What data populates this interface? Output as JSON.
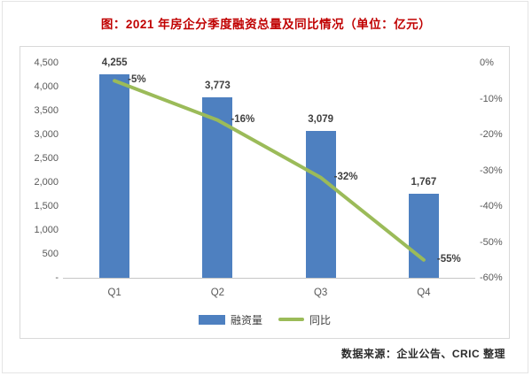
{
  "title": "图：2021 年房企分季度融资总量及同比情况（单位：亿元）",
  "source": "数据来源：企业公告、CRIC 整理",
  "legend": {
    "bar_label": "融资量",
    "line_label": "同比"
  },
  "colors": {
    "bar": "#4e80c0",
    "line": "#9bbb59",
    "title": "#c00000",
    "axis_text": "#595959",
    "label_text": "#404040",
    "frame_border": "#d9d9d9"
  },
  "chart_data": {
    "type": "bar",
    "title": "图：2021 年房企分季度融资总量及同比情况（单位：亿元）",
    "categories": [
      "Q1",
      "Q2",
      "Q3",
      "Q4"
    ],
    "series": [
      {
        "name": "融资量",
        "type": "bar",
        "axis": "left",
        "values": [
          4255,
          3773,
          3079,
          1767
        ],
        "labels": [
          "4,255",
          "3,773",
          "3,079",
          "1,767"
        ]
      },
      {
        "name": "同比",
        "type": "line",
        "axis": "right",
        "values": [
          -5,
          -16,
          -32,
          -55
        ],
        "labels": [
          "-5%",
          "-16%",
          "-32%",
          "-55%"
        ]
      }
    ],
    "left_axis": {
      "min": 0,
      "max": 4500,
      "step": 500,
      "ticks": [
        "4,500",
        "4,000",
        "3,500",
        "3,000",
        "2,500",
        "2,000",
        "1,500",
        "1,000",
        "500",
        "-"
      ]
    },
    "right_axis": {
      "min": -60,
      "max": 0,
      "step": 10,
      "ticks": [
        "0%",
        "-10%",
        "-20%",
        "-30%",
        "-40%",
        "-50%",
        "-60%"
      ]
    },
    "grid": false,
    "legend_position": "bottom"
  }
}
